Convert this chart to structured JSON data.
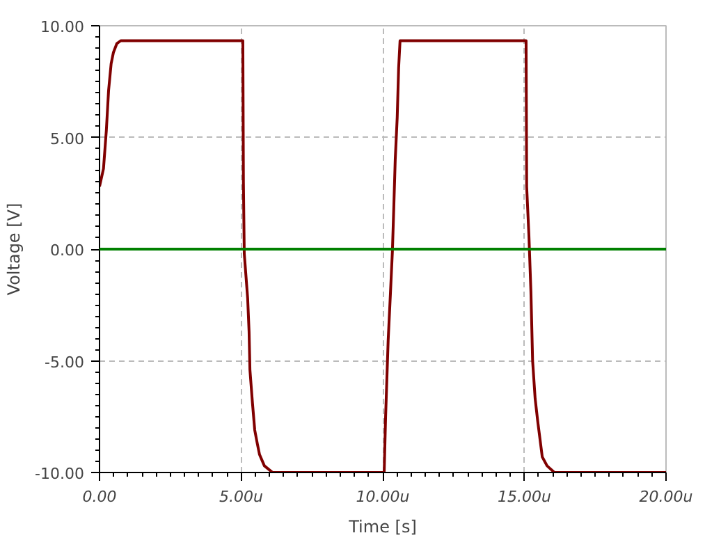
{
  "chart_data": {
    "type": "line",
    "xlabel": "Time [s]",
    "ylabel": "Voltage [V]",
    "xlim": [
      0,
      20
    ],
    "ylim": [
      -10,
      10
    ],
    "xticks": [
      {
        "value": 0,
        "label": "0.00"
      },
      {
        "value": 5,
        "label": "5.00u"
      },
      {
        "value": 10,
        "label": "10.00u"
      },
      {
        "value": 15,
        "label": "15.00u"
      },
      {
        "value": 20,
        "label": "20.00u"
      }
    ],
    "yticks": [
      {
        "value": -10,
        "label": "-10.00"
      },
      {
        "value": -5,
        "label": "-5.00"
      },
      {
        "value": 0,
        "label": "0.00"
      },
      {
        "value": 5,
        "label": "5.00"
      },
      {
        "value": 10,
        "label": "10.00"
      }
    ],
    "grid": true,
    "marker": "none",
    "line_style": "solid",
    "ref_lines": [
      {
        "axis": "y",
        "value": 0,
        "color": "#008000"
      }
    ],
    "series": [
      {
        "color": "#800000",
        "x": [
          0,
          0.14,
          0.24,
          0.32,
          0.41,
          0.49,
          0.61,
          0.75,
          5.06,
          5.08,
          5.11,
          5.23,
          5.28,
          5.31,
          5.4,
          5.48,
          5.57,
          5.65,
          5.82,
          6.11,
          10.05,
          10.1,
          10.19,
          10.27,
          10.34,
          10.39,
          10.44,
          10.51,
          10.56,
          10.61,
          15.06,
          15.08,
          15.16,
          15.23,
          15.29,
          15.38,
          15.47,
          15.55,
          15.63,
          15.8,
          16.06,
          20
        ],
        "values": [
          2.8,
          3.6,
          5.3,
          7.1,
          8.3,
          8.8,
          9.2,
          9.33,
          9.33,
          3.0,
          -0.2,
          -2.2,
          -3.7,
          -5.4,
          -6.9,
          -8.1,
          -8.7,
          -9.2,
          -9.7,
          -10,
          -10,
          -7.5,
          -4.1,
          -2.0,
          -0.1,
          1.9,
          4.0,
          5.9,
          8.1,
          9.33,
          9.33,
          2.8,
          0.6,
          -1.9,
          -5.0,
          -6.7,
          -7.7,
          -8.5,
          -9.3,
          -9.7,
          -10,
          -10
        ]
      }
    ]
  }
}
